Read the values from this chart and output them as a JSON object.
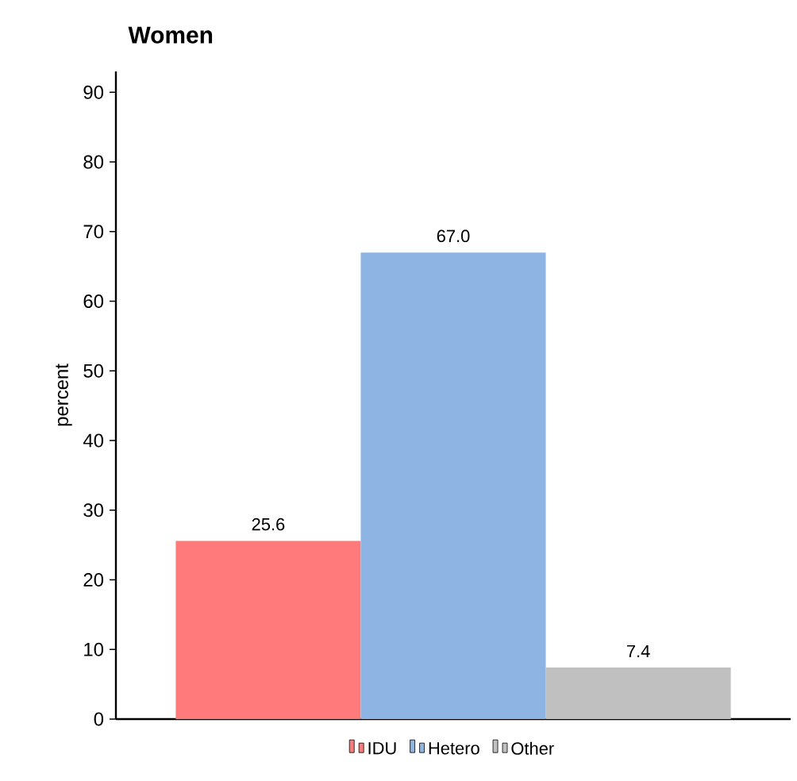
{
  "chart_data": {
    "type": "bar",
    "title": "Women",
    "ylabel": "percent",
    "categories": [
      null
    ],
    "series": [
      {
        "name": "IDU",
        "color": "#ff7b7b",
        "values": [
          25.6
        ],
        "value_labels": [
          "25.6"
        ]
      },
      {
        "name": "Hetero",
        "color": "#8eb4e3",
        "values": [
          67.0
        ],
        "value_labels": [
          "67.0"
        ]
      },
      {
        "name": "Other",
        "color": "#c0c0c0",
        "values": [
          7.4
        ],
        "value_labels": [
          "7.4"
        ]
      }
    ],
    "ylim": [
      0,
      93
    ],
    "yticks": [
      0,
      10,
      20,
      30,
      40,
      50,
      60,
      70,
      80,
      90
    ],
    "grid": false,
    "legend": "bottom"
  }
}
